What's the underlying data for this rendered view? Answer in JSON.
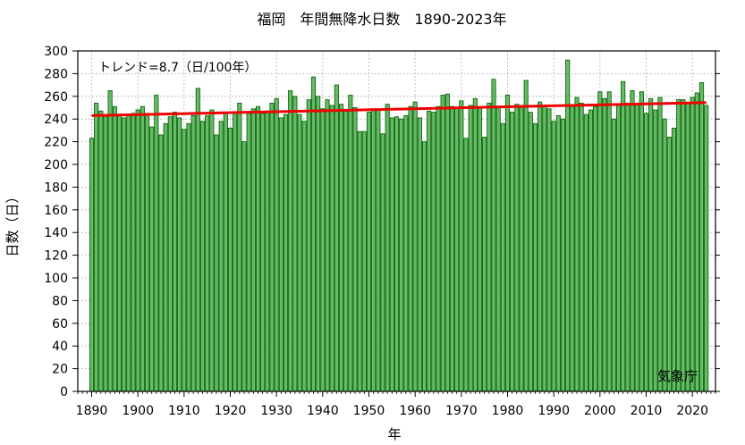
{
  "chart_data": {
    "type": "bar",
    "title": "福岡　年間無降水日数　1890-2023年",
    "xlabel": "年",
    "ylabel": "日数（日）",
    "trend_label": "トレンド=8.7（日/100年）",
    "credit": "気象庁",
    "xlim": [
      1887,
      2025
    ],
    "ylim": [
      0,
      300
    ],
    "x_ticks": [
      1890,
      1900,
      1910,
      1920,
      1930,
      1940,
      1950,
      1960,
      1970,
      1980,
      1990,
      2000,
      2010,
      2020
    ],
    "y_ticks": [
      0,
      20,
      40,
      60,
      80,
      100,
      120,
      140,
      160,
      180,
      200,
      220,
      240,
      260,
      280,
      300
    ],
    "grid": true,
    "bar_color": "#66bb66",
    "bar_edge_color": "#116611",
    "trend_color": "#ee0000",
    "trend": {
      "x": [
        1890,
        2023
      ],
      "y": [
        243,
        254.5
      ]
    },
    "x": [
      1890,
      1891,
      1892,
      1893,
      1894,
      1895,
      1896,
      1897,
      1898,
      1899,
      1900,
      1901,
      1902,
      1903,
      1904,
      1905,
      1906,
      1907,
      1908,
      1909,
      1910,
      1911,
      1912,
      1913,
      1914,
      1915,
      1916,
      1917,
      1918,
      1919,
      1920,
      1921,
      1922,
      1923,
      1924,
      1925,
      1926,
      1927,
      1928,
      1929,
      1930,
      1931,
      1932,
      1933,
      1934,
      1935,
      1936,
      1937,
      1938,
      1939,
      1940,
      1941,
      1942,
      1943,
      1944,
      1945,
      1946,
      1947,
      1948,
      1949,
      1950,
      1951,
      1952,
      1953,
      1954,
      1955,
      1956,
      1957,
      1958,
      1959,
      1960,
      1961,
      1962,
      1963,
      1964,
      1965,
      1966,
      1967,
      1968,
      1969,
      1970,
      1971,
      1972,
      1973,
      1974,
      1975,
      1976,
      1977,
      1978,
      1979,
      1980,
      1981,
      1982,
      1983,
      1984,
      1985,
      1986,
      1987,
      1988,
      1989,
      1990,
      1991,
      1992,
      1993,
      1994,
      1995,
      1996,
      1997,
      1998,
      1999,
      2000,
      2001,
      2002,
      2003,
      2004,
      2005,
      2006,
      2007,
      2008,
      2009,
      2010,
      2011,
      2012,
      2013,
      2014,
      2015,
      2016,
      2017,
      2018,
      2019,
      2020,
      2021,
      2022,
      2023
    ],
    "values": [
      223,
      254,
      247,
      243,
      265,
      251,
      243,
      241,
      243,
      245,
      248,
      251,
      245,
      233,
      261,
      226,
      236,
      242,
      246,
      241,
      231,
      236,
      243,
      267,
      238,
      243,
      248,
      226,
      238,
      245,
      232,
      246,
      254,
      220,
      245,
      249,
      251,
      245,
      247,
      254,
      258,
      241,
      244,
      265,
      260,
      244,
      238,
      257,
      277,
      260,
      249,
      257,
      252,
      270,
      253,
      248,
      261,
      250,
      229,
      229,
      246,
      249,
      248,
      227,
      253,
      241,
      242,
      240,
      243,
      251,
      255,
      241,
      220,
      247,
      246,
      251,
      261,
      262,
      251,
      250,
      256,
      223,
      252,
      258,
      250,
      224,
      254,
      275,
      250,
      236,
      261,
      246,
      253,
      252,
      274,
      246,
      236,
      255,
      251,
      249,
      238,
      243,
      240,
      292,
      252,
      259,
      254,
      244,
      248,
      251,
      264,
      258,
      264,
      240,
      253,
      273,
      254,
      265,
      253,
      264,
      245,
      258,
      248,
      259,
      240,
      224,
      232,
      257,
      257,
      254,
      259,
      263,
      272,
      252
    ]
  }
}
